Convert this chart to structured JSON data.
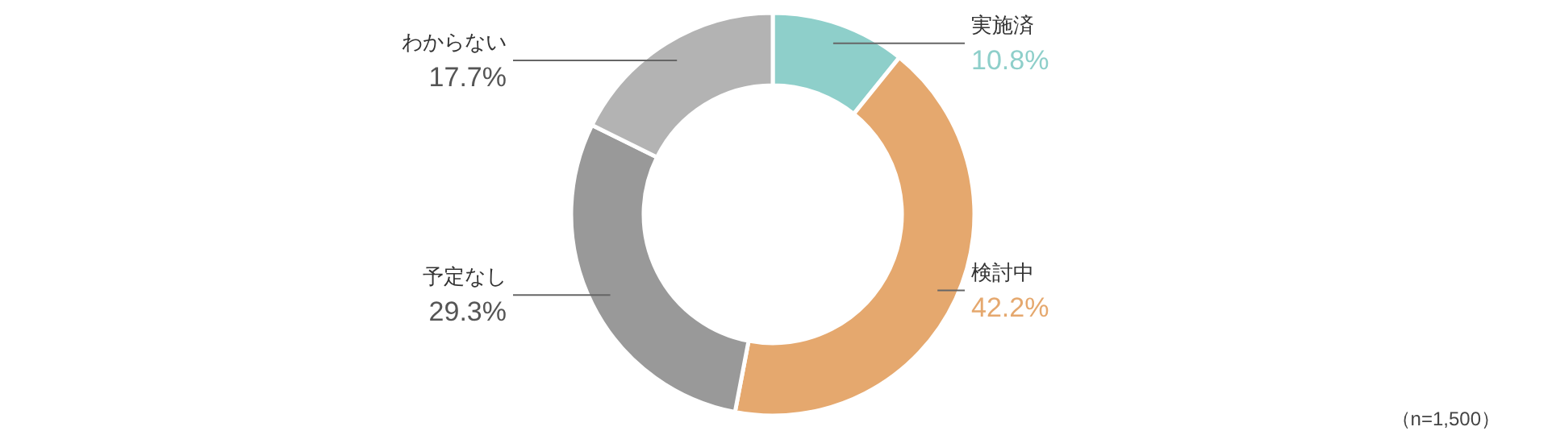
{
  "chart_data": {
    "type": "donut",
    "categories": [
      "実施済",
      "検討中",
      "予定なし",
      "わからない"
    ],
    "values": [
      10.8,
      42.2,
      29.3,
      17.7
    ],
    "colors": [
      "#8ecfca",
      "#e5a86e",
      "#999999",
      "#b3b3b3"
    ],
    "value_labels": [
      "10.8%",
      "42.2%",
      "29.3%",
      "17.7%"
    ],
    "annotations": [
      "（n=1,500）"
    ]
  }
}
